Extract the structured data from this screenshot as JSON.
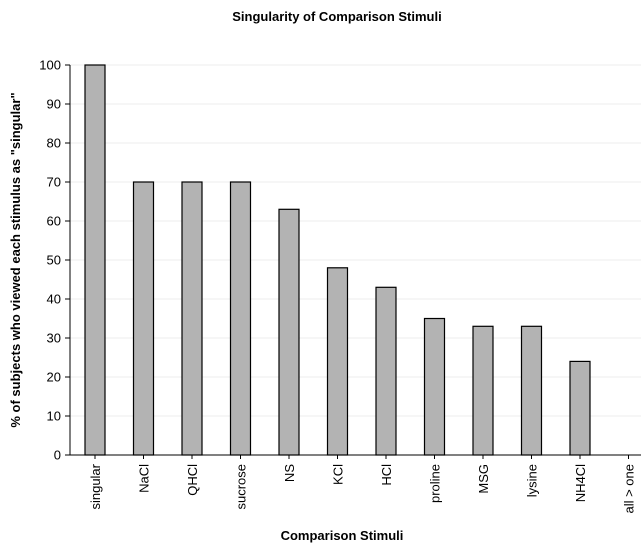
{
  "chart_data": {
    "type": "bar",
    "title": "Singularity of Comparison Stimuli",
    "xlabel": "Comparison Stimuli",
    "ylabel": "% of subjects who viewed each stimulus as \"singular\"",
    "categories": [
      "singular",
      "NaCl",
      "QHCl",
      "sucrose",
      "NS",
      "KCl",
      "HCl",
      "proline",
      "MSG",
      "lysine",
      "NH4Cl",
      "all > one"
    ],
    "values": [
      100,
      70,
      70,
      70,
      63,
      48,
      43,
      35,
      33,
      33,
      24,
      0
    ],
    "ylim": [
      0,
      100
    ],
    "yticks": [
      "0",
      "10",
      "20",
      "30",
      "40",
      "50",
      "60",
      "70",
      "80",
      "90",
      "100"
    ],
    "grid": true,
    "legend": "none",
    "bar_color": "#b3b3b3"
  }
}
